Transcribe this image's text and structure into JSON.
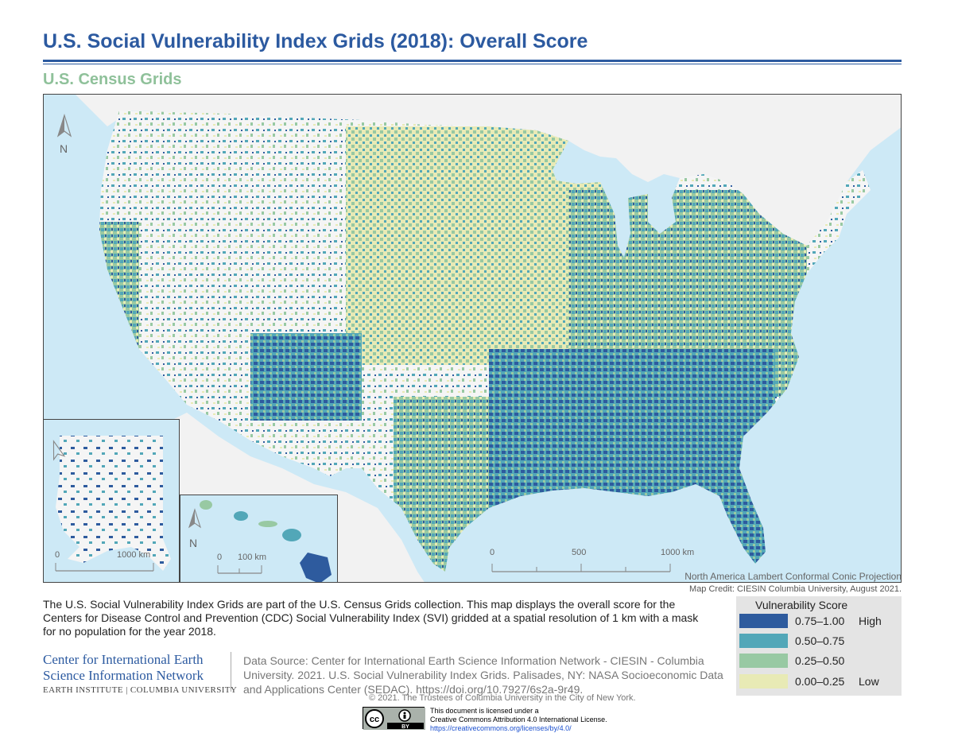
{
  "title": "U.S. Social Vulnerability Index Grids (2018): Overall Score",
  "subtitle": "U.S. Census Grids",
  "north_label": "N",
  "map": {
    "scale_main": {
      "zero": "0",
      "mid": "500",
      "end": "1000 km"
    },
    "scale_alaska": {
      "zero": "0",
      "end": "1000 km"
    },
    "scale_hawaii": {
      "zero": "0",
      "end": "100 km"
    }
  },
  "projection": "North America Lambert Conformal Conic Projection",
  "credit": "Map Credit: CIESIN Columbia University, August 2021.",
  "description": "The U.S. Social Vulnerability Index Grids are part of the U.S. Census Grids collection. This map displays the overall score for the Centers for Disease Control and Prevention (CDC) Social Vulnerability Index (SVI) gridded at a spatial resolution of 1 km with a mask for no population for the year 2018.",
  "legend": {
    "title": "Vulnerability Score",
    "items": [
      {
        "range": "0.75–1.00",
        "tag": "High",
        "color": "#2e5b9e"
      },
      {
        "range": "0.50–0.75",
        "tag": "",
        "color": "#52a7b8"
      },
      {
        "range": "0.25–0.50",
        "tag": "",
        "color": "#98c9a3"
      },
      {
        "range": "0.00–0.25",
        "tag": "Low",
        "color": "#e8eab5"
      }
    ]
  },
  "org": {
    "line1": "Center for International Earth",
    "line2": "Science Information Network",
    "line3": "EARTH INSTITUTE | COLUMBIA UNIVERSITY"
  },
  "data_source": "Data Source: Center for International Earth Science Information Network - CIESIN - Columbia University. 2021. U.S. Social Vulnerability Index Grids. Palisades, NY: NASA Socioeconomic Data and Applications Center (SEDAC). https://doi.org/10.7927/6s2a-9r49.",
  "copyright": "© 2021. The Trustees of Columbia University in the City of New York.",
  "license": {
    "line1": "This document is licensed under a",
    "line2": "Creative Commons Attribution 4.0 International License.",
    "link": "https://creativecommons.org/licenses/by/4.0/",
    "badge_cc": "cc",
    "badge_by": "BY"
  },
  "colors": {
    "water": "#cde9f6",
    "land": "#f2f2f2",
    "title": "#2c5aa0",
    "subtitle": "#8fc19a"
  }
}
